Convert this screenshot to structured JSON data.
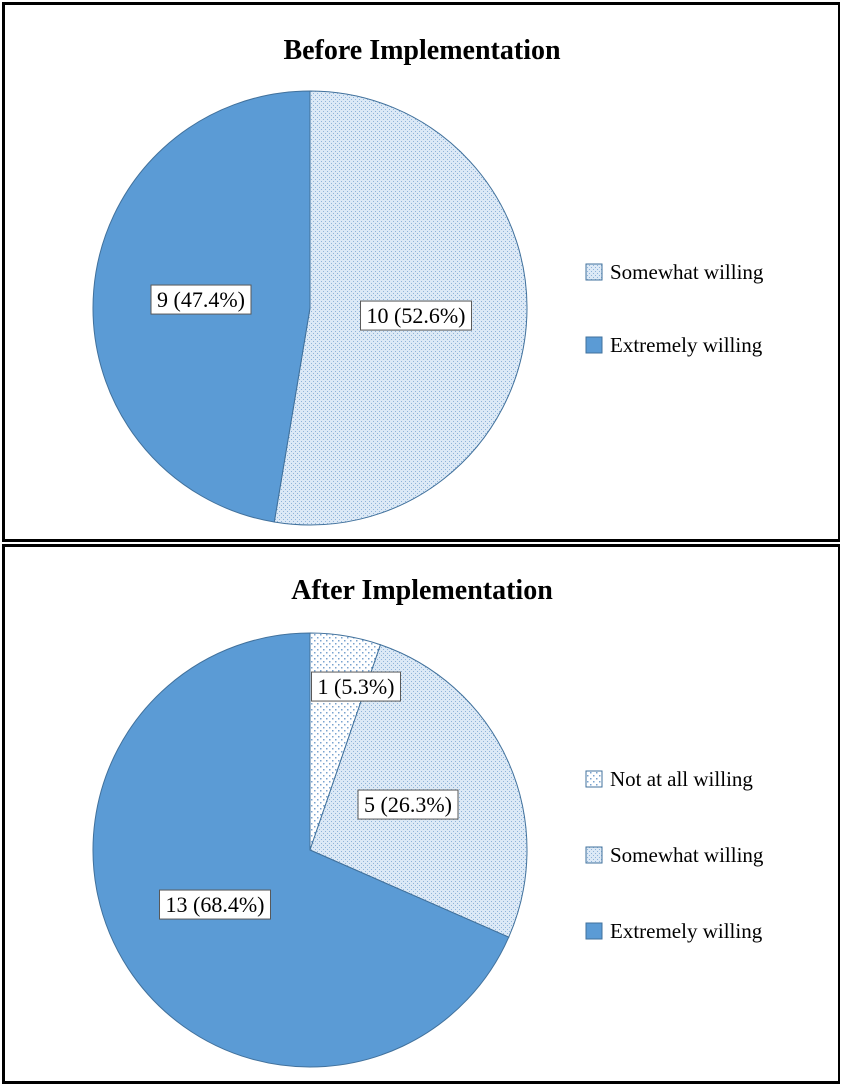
{
  "colors": {
    "extremely": "#5b9bd5",
    "somewhat_bg": "#dce9f6",
    "somewhat_dot": "#8fb3d9",
    "not_bg": "#ffffff",
    "not_dot": "#7aa3cf",
    "outline": "#41719c"
  },
  "chart_data": [
    {
      "type": "pie",
      "title": "Before Implementation",
      "slices": [
        {
          "name": "Somewhat willing",
          "value": 10,
          "label": "10 (52.6%)",
          "style": "somewhat"
        },
        {
          "name": "Extremely willing",
          "value": 9,
          "label": "9 (47.4%)",
          "style": "extremely"
        }
      ],
      "legend": {
        "placement": "right",
        "entries": [
          {
            "name": "Somewhat willing",
            "style": "somewhat"
          },
          {
            "name": "Extremely willing",
            "style": "extremely"
          }
        ]
      }
    },
    {
      "type": "pie",
      "title": "After Implementation",
      "slices": [
        {
          "name": "Not at all willing",
          "value": 1,
          "label": "1 (5.3%)",
          "style": "not"
        },
        {
          "name": "Somewhat willing",
          "value": 5,
          "label": "5 (26.3%)",
          "style": "somewhat"
        },
        {
          "name": "Extremely willing",
          "value": 13,
          "label": "13 (68.4%)",
          "style": "extremely"
        }
      ],
      "legend": {
        "placement": "right",
        "entries": [
          {
            "name": "Not at all willing",
            "style": "not"
          },
          {
            "name": "Somewhat willing",
            "style": "somewhat"
          },
          {
            "name": "Extremely willing",
            "style": "extremely"
          }
        ]
      }
    }
  ]
}
